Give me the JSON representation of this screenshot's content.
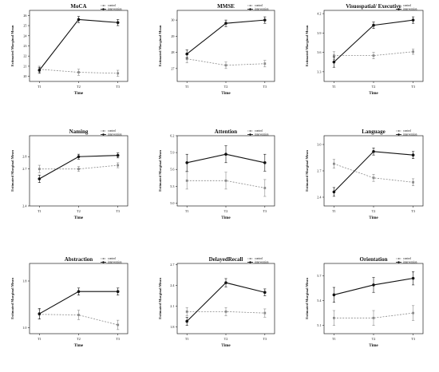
{
  "chart_data": [
    {
      "type": "line",
      "title": "MoCA",
      "xlabel": "Time",
      "ylabel": "Estimated Marginal Mean",
      "categories": [
        "T1",
        "T2",
        "T3"
      ],
      "ylim": [
        19.5,
        26.5
      ],
      "yticks": [
        20,
        21,
        22,
        23,
        24,
        25,
        26
      ],
      "ytick_labels": [
        "20",
        "21",
        "22",
        "23",
        "24",
        "25",
        "26"
      ],
      "series": [
        {
          "name": "control",
          "values": [
            20.7,
            20.4,
            20.3
          ],
          "errors": [
            0.3,
            0.3,
            0.3
          ]
        },
        {
          "name": "intervention",
          "values": [
            20.6,
            25.6,
            25.3
          ],
          "errors": [
            0.3,
            0.3,
            0.3
          ]
        }
      ]
    },
    {
      "type": "line",
      "title": "MMSE",
      "xlabel": "Time",
      "ylabel": "Estimated Marginal Mean",
      "categories": [
        "T1",
        "T2",
        "T3"
      ],
      "ylim": [
        26.2,
        30.6
      ],
      "yticks": [
        27,
        28,
        29,
        30
      ],
      "ytick_labels": [
        "27",
        "28",
        "29",
        "30"
      ],
      "series": [
        {
          "name": "control",
          "values": [
            27.6,
            27.2,
            27.3
          ],
          "errors": [
            0.25,
            0.2,
            0.2
          ]
        },
        {
          "name": "intervention",
          "values": [
            27.9,
            29.8,
            30.0
          ],
          "errors": [
            0.25,
            0.2,
            0.2
          ]
        }
      ]
    },
    {
      "type": "line",
      "title": "Visuospatial/ Executive",
      "xlabel": "Time",
      "ylabel": "Estimated Marginal Mean",
      "categories": [
        "T1",
        "T2",
        "T3"
      ],
      "ylim": [
        3.15,
        4.25
      ],
      "yticks": [
        3.3,
        3.6,
        3.9,
        4.2
      ],
      "ytick_labels": [
        "3.3",
        "3.6",
        "3.9",
        "4.2"
      ],
      "series": [
        {
          "name": "control",
          "values": [
            3.55,
            3.55,
            3.61
          ],
          "errors": [
            0.06,
            0.05,
            0.04
          ]
        },
        {
          "name": "intervention",
          "values": [
            3.45,
            4.02,
            4.1
          ],
          "errors": [
            0.08,
            0.05,
            0.05
          ]
        }
      ]
    },
    {
      "type": "line",
      "title": "Naming",
      "xlabel": "Time",
      "ylabel": "Estimated Marginal Mean",
      "categories": [
        "T1",
        "T2",
        "T3"
      ],
      "ylim": [
        2.4,
        2.97
      ],
      "yticks": [
        2.4,
        2.7,
        2.8
      ],
      "ytick_labels": [
        "2.4",
        "2.7",
        "2.8"
      ],
      "series": [
        {
          "name": "control",
          "values": [
            2.7,
            2.7,
            2.73
          ],
          "errors": [
            0.03,
            0.02,
            0.02
          ]
        },
        {
          "name": "intervention",
          "values": [
            2.62,
            2.8,
            2.81
          ],
          "errors": [
            0.03,
            0.02,
            0.02
          ]
        }
      ]
    },
    {
      "type": "line",
      "title": "Attention",
      "xlabel": "Time",
      "ylabel": "Estimated Marginal Mean",
      "categories": [
        "T1",
        "T2",
        "T3"
      ],
      "ylim": [
        4.95,
        6.2
      ],
      "yticks": [
        5.0,
        5.3,
        5.6,
        5.9,
        6.2
      ],
      "ytick_labels": [
        "5.0",
        "5.3",
        "5.6",
        "5.9",
        "6.2"
      ],
      "series": [
        {
          "name": "control",
          "values": [
            5.4,
            5.4,
            5.27
          ],
          "errors": [
            0.15,
            0.15,
            0.15
          ]
        },
        {
          "name": "intervention",
          "values": [
            5.72,
            5.87,
            5.72
          ],
          "errors": [
            0.15,
            0.15,
            0.15
          ]
        }
      ]
    },
    {
      "type": "line",
      "title": "Language",
      "xlabel": "Time",
      "ylabel": "Estimated Marginal Mean",
      "categories": [
        "T1",
        "T2",
        "T3"
      ],
      "ylim": [
        2.3,
        3.1
      ],
      "yticks": [
        2.4,
        2.7,
        3.0
      ],
      "ytick_labels": [
        "2.4",
        "2.7",
        "3.0"
      ],
      "series": [
        {
          "name": "control",
          "values": [
            2.78,
            2.62,
            2.57
          ],
          "errors": [
            0.05,
            0.04,
            0.04
          ]
        },
        {
          "name": "intervention",
          "values": [
            2.46,
            2.92,
            2.88
          ],
          "errors": [
            0.05,
            0.04,
            0.04
          ]
        }
      ]
    },
    {
      "type": "line",
      "title": "Abstraction",
      "xlabel": "Time",
      "ylabel": "Estimated Marginal Mean",
      "categories": [
        "T1",
        "T2",
        "T3"
      ],
      "ylim": [
        0.9,
        2.1
      ],
      "yticks": [
        1.0,
        1.8
      ],
      "ytick_labels": [
        "1.0",
        "1.8"
      ],
      "series": [
        {
          "name": "control",
          "values": [
            1.23,
            1.22,
            1.05
          ],
          "errors": [
            0.08,
            0.08,
            0.08
          ]
        },
        {
          "name": "intervention",
          "values": [
            1.24,
            1.62,
            1.62
          ],
          "errors": [
            0.09,
            0.06,
            0.06
          ]
        }
      ]
    },
    {
      "type": "line",
      "title": "DelayedRecall",
      "xlabel": "Time",
      "ylabel": "Estimated Marginal Mean",
      "categories": [
        "T1",
        "T2",
        "T3"
      ],
      "ylim": [
        1.7,
        2.72
      ],
      "yticks": [
        1.8,
        2.1,
        2.4,
        2.7
      ],
      "ytick_labels": [
        "1.8",
        "2.1",
        "2.4",
        "2.7"
      ],
      "series": [
        {
          "name": "control",
          "values": [
            2.02,
            2.02,
            2.0
          ],
          "errors": [
            0.06,
            0.06,
            0.06
          ]
        },
        {
          "name": "intervention",
          "values": [
            1.88,
            2.44,
            2.3
          ],
          "errors": [
            0.06,
            0.06,
            0.05
          ]
        }
      ]
    },
    {
      "type": "line",
      "title": "Orientation",
      "xlabel": "Time",
      "ylabel": "Estimated Marginal Mean",
      "categories": [
        "T1",
        "T2",
        "T3"
      ],
      "ylim": [
        5.0,
        5.85
      ],
      "yticks": [
        5.1,
        5.4,
        5.7
      ],
      "ytick_labels": [
        "5.1",
        "5.4",
        "5.7"
      ],
      "series": [
        {
          "name": "control",
          "values": [
            5.19,
            5.19,
            5.25
          ],
          "errors": [
            0.09,
            0.09,
            0.09
          ]
        },
        {
          "name": "intervention",
          "values": [
            5.47,
            5.59,
            5.67
          ],
          "errors": [
            0.09,
            0.09,
            0.08
          ]
        }
      ]
    }
  ],
  "legend": {
    "control": "control",
    "intervention": "intervention"
  },
  "colors": {
    "control": "#8a8a8a",
    "intervention": "#111111",
    "axis": "#222222"
  }
}
